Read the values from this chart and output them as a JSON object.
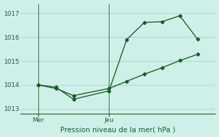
{
  "background_color": "#cff0e8",
  "grid_color": "#aad8cc",
  "line_color": "#1a5c28",
  "xlabel": "Pression niveau de la mer( hPa )",
  "ylim": [
    1012.8,
    1017.4
  ],
  "yticks": [
    1013,
    1014,
    1015,
    1016,
    1017
  ],
  "ytick_labels": [
    "1013",
    "1014",
    "1015",
    "1016",
    "1017"
  ],
  "x_mer": 1,
  "x_jeu": 5,
  "xlim": [
    0,
    11
  ],
  "line1_x": [
    1,
    2,
    3,
    5,
    6,
    7,
    8,
    9,
    10
  ],
  "line1_y": [
    1014.0,
    1013.9,
    1013.4,
    1013.75,
    1015.9,
    1016.62,
    1016.65,
    1016.9,
    1015.92
  ],
  "line2_x": [
    1,
    2,
    3,
    5,
    6,
    7,
    8,
    9,
    10
  ],
  "line2_y": [
    1014.0,
    1013.85,
    1013.55,
    1013.85,
    1014.15,
    1014.45,
    1014.72,
    1015.02,
    1015.28
  ],
  "marker_size": 2.5,
  "linewidth": 1.0,
  "tick_fontsize": 6.5,
  "xlabel_fontsize": 7.5
}
